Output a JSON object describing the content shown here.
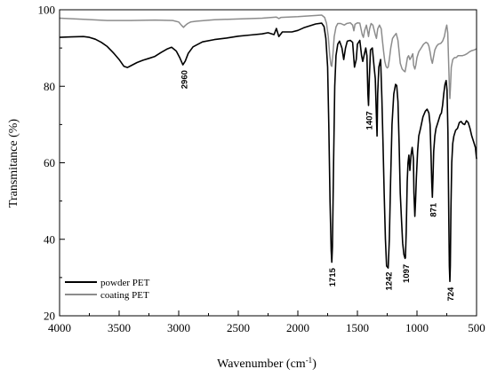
{
  "chart_data": {
    "type": "line",
    "xlabel": "Wavenumber (cm",
    "xlabel_superscript": "-1",
    "xlabel_suffix": ")",
    "ylabel": "Transmitance (%)",
    "xlim": [
      4000,
      500
    ],
    "ylim": [
      20,
      100
    ],
    "x_reversed": true,
    "x_ticks": [
      4000,
      3500,
      3000,
      2500,
      2000,
      1500,
      1000,
      500
    ],
    "x_tick_labels": [
      "4000",
      "3500",
      "3000",
      "2500",
      "2000",
      "1500",
      "1000",
      "500"
    ],
    "y_ticks": [
      20,
      40,
      60,
      80,
      100
    ],
    "y_tick_labels": [
      "20",
      "40",
      "60",
      "80",
      "100"
    ],
    "grid": false,
    "legend_position": "bottom-left",
    "series": [
      {
        "name": "powder PET",
        "color": "#000000",
        "points": [
          [
            4000,
            92.8
          ],
          [
            3900,
            92.9
          ],
          [
            3800,
            93.0
          ],
          [
            3750,
            92.8
          ],
          [
            3700,
            92.3
          ],
          [
            3650,
            91.5
          ],
          [
            3600,
            90.4
          ],
          [
            3550,
            88.8
          ],
          [
            3500,
            87.0
          ],
          [
            3460,
            85.2
          ],
          [
            3430,
            84.9
          ],
          [
            3400,
            85.4
          ],
          [
            3350,
            86.2
          ],
          [
            3300,
            86.8
          ],
          [
            3250,
            87.3
          ],
          [
            3200,
            87.8
          ],
          [
            3150,
            88.8
          ],
          [
            3100,
            89.7
          ],
          [
            3060,
            90.2
          ],
          [
            3020,
            89.2
          ],
          [
            2990,
            87.4
          ],
          [
            2965,
            85.6
          ],
          [
            2945,
            86.6
          ],
          [
            2920,
            88.6
          ],
          [
            2880,
            90.3
          ],
          [
            2850,
            90.8
          ],
          [
            2800,
            91.6
          ],
          [
            2700,
            92.2
          ],
          [
            2600,
            92.6
          ],
          [
            2500,
            93.1
          ],
          [
            2400,
            93.4
          ],
          [
            2300,
            93.7
          ],
          [
            2250,
            94.0
          ],
          [
            2200,
            93.5
          ],
          [
            2180,
            95.1
          ],
          [
            2160,
            93.0
          ],
          [
            2130,
            94.2
          ],
          [
            2050,
            94.2
          ],
          [
            2000,
            94.6
          ],
          [
            1950,
            95.3
          ],
          [
            1900,
            95.8
          ],
          [
            1850,
            96.3
          ],
          [
            1800,
            96.5
          ],
          [
            1780,
            95.6
          ],
          [
            1765,
            92.5
          ],
          [
            1750,
            85.0
          ],
          [
            1740,
            70.0
          ],
          [
            1730,
            50.0
          ],
          [
            1720,
            37.0
          ],
          [
            1715,
            34.0
          ],
          [
            1710,
            38.0
          ],
          [
            1700,
            60.0
          ],
          [
            1690,
            80.0
          ],
          [
            1680,
            88.0
          ],
          [
            1665,
            91.0
          ],
          [
            1650,
            91.8
          ],
          [
            1630,
            90.0
          ],
          [
            1615,
            87.0
          ],
          [
            1600,
            90.0
          ],
          [
            1585,
            91.8
          ],
          [
            1560,
            92.0
          ],
          [
            1540,
            91.5
          ],
          [
            1525,
            85.0
          ],
          [
            1510,
            87.0
          ],
          [
            1500,
            91.0
          ],
          [
            1480,
            92.0
          ],
          [
            1465,
            88.0
          ],
          [
            1455,
            86.5
          ],
          [
            1445,
            88.0
          ],
          [
            1430,
            90.0
          ],
          [
            1420,
            88.0
          ],
          [
            1412,
            78.0
          ],
          [
            1407,
            75.0
          ],
          [
            1400,
            82.0
          ],
          [
            1390,
            89.5
          ],
          [
            1375,
            90.0
          ],
          [
            1360,
            85.0
          ],
          [
            1350,
            82.0
          ],
          [
            1340,
            72.0
          ],
          [
            1335,
            67.0
          ],
          [
            1330,
            78.0
          ],
          [
            1320,
            85.0
          ],
          [
            1305,
            87.0
          ],
          [
            1295,
            77.0
          ],
          [
            1285,
            65.0
          ],
          [
            1275,
            52.0
          ],
          [
            1265,
            40.0
          ],
          [
            1255,
            33.0
          ],
          [
            1242,
            32.5
          ],
          [
            1232,
            40.0
          ],
          [
            1222,
            55.0
          ],
          [
            1210,
            70.0
          ],
          [
            1195,
            78.0
          ],
          [
            1180,
            80.5
          ],
          [
            1170,
            80.2
          ],
          [
            1160,
            76.0
          ],
          [
            1150,
            65.0
          ],
          [
            1140,
            52.0
          ],
          [
            1130,
            45.0
          ],
          [
            1120,
            39.0
          ],
          [
            1110,
            36.0
          ],
          [
            1100,
            35.0
          ],
          [
            1097,
            35.2
          ],
          [
            1090,
            42.0
          ],
          [
            1082,
            55.0
          ],
          [
            1075,
            60.0
          ],
          [
            1068,
            62.0
          ],
          [
            1060,
            58.0
          ],
          [
            1050,
            62.0
          ],
          [
            1040,
            64.0
          ],
          [
            1030,
            61.0
          ],
          [
            1025,
            52.0
          ],
          [
            1018,
            46.0
          ],
          [
            1012,
            50.0
          ],
          [
            1005,
            56.0
          ],
          [
            995,
            63.0
          ],
          [
            985,
            67.0
          ],
          [
            970,
            69.0
          ],
          [
            950,
            72.0
          ],
          [
            930,
            73.5
          ],
          [
            915,
            74.0
          ],
          [
            900,
            73.0
          ],
          [
            890,
            70.0
          ],
          [
            882,
            62.0
          ],
          [
            876,
            55.0
          ],
          [
            871,
            51.0
          ],
          [
            866,
            56.0
          ],
          [
            860,
            63.0
          ],
          [
            850,
            67.0
          ],
          [
            840,
            69.0
          ],
          [
            830,
            70.0
          ],
          [
            820,
            71.0
          ],
          [
            805,
            72.5
          ],
          [
            795,
            73.0
          ],
          [
            785,
            75.0
          ],
          [
            775,
            78.0
          ],
          [
            765,
            80.5
          ],
          [
            755,
            81.5
          ],
          [
            748,
            79.0
          ],
          [
            740,
            68.0
          ],
          [
            733,
            45.0
          ],
          [
            728,
            33.0
          ],
          [
            724,
            29.0
          ],
          [
            720,
            33.0
          ],
          [
            715,
            48.0
          ],
          [
            708,
            60.0
          ],
          [
            700,
            65.0
          ],
          [
            690,
            67.0
          ],
          [
            675,
            68.5
          ],
          [
            660,
            69.0
          ],
          [
            645,
            70.5
          ],
          [
            630,
            70.8
          ],
          [
            615,
            70.2
          ],
          [
            600,
            70.0
          ],
          [
            585,
            71.0
          ],
          [
            570,
            70.5
          ],
          [
            555,
            69.0
          ],
          [
            540,
            67.0
          ],
          [
            525,
            65.5
          ],
          [
            510,
            64.0
          ],
          [
            500,
            61.0
          ]
        ]
      },
      {
        "name": "coating PET",
        "color": "#8c8c8c",
        "points": [
          [
            4000,
            97.8
          ],
          [
            3800,
            97.5
          ],
          [
            3600,
            97.2
          ],
          [
            3400,
            97.2
          ],
          [
            3200,
            97.3
          ],
          [
            3050,
            97.2
          ],
          [
            3000,
            96.8
          ],
          [
            2975,
            95.9
          ],
          [
            2960,
            95.4
          ],
          [
            2945,
            95.9
          ],
          [
            2925,
            96.4
          ],
          [
            2900,
            96.8
          ],
          [
            2850,
            97.0
          ],
          [
            2700,
            97.4
          ],
          [
            2500,
            97.6
          ],
          [
            2300,
            97.8
          ],
          [
            2180,
            98.1
          ],
          [
            2160,
            97.7
          ],
          [
            2140,
            98.0
          ],
          [
            2000,
            98.2
          ],
          [
            1900,
            98.4
          ],
          [
            1800,
            98.6
          ],
          [
            1775,
            98.0
          ],
          [
            1760,
            96.5
          ],
          [
            1745,
            93.0
          ],
          [
            1732,
            88.0
          ],
          [
            1722,
            85.5
          ],
          [
            1715,
            85.2
          ],
          [
            1705,
            88.5
          ],
          [
            1695,
            93.0
          ],
          [
            1680,
            95.5
          ],
          [
            1665,
            96.4
          ],
          [
            1640,
            96.4
          ],
          [
            1610,
            96.0
          ],
          [
            1590,
            96.4
          ],
          [
            1560,
            96.6
          ],
          [
            1540,
            96.0
          ],
          [
            1530,
            94.5
          ],
          [
            1520,
            96.2
          ],
          [
            1500,
            96.6
          ],
          [
            1480,
            96.5
          ],
          [
            1460,
            93.5
          ],
          [
            1450,
            92.8
          ],
          [
            1440,
            94.5
          ],
          [
            1425,
            96.0
          ],
          [
            1412,
            94.0
          ],
          [
            1407,
            93.0
          ],
          [
            1398,
            95.0
          ],
          [
            1385,
            96.4
          ],
          [
            1370,
            96.0
          ],
          [
            1350,
            93.5
          ],
          [
            1340,
            92.5
          ],
          [
            1330,
            95.0
          ],
          [
            1315,
            96.0
          ],
          [
            1300,
            95.0
          ],
          [
            1290,
            92.0
          ],
          [
            1280,
            89.0
          ],
          [
            1270,
            86.5
          ],
          [
            1260,
            85.2
          ],
          [
            1250,
            84.8
          ],
          [
            1242,
            85.0
          ],
          [
            1232,
            87.0
          ],
          [
            1220,
            90.0
          ],
          [
            1205,
            92.5
          ],
          [
            1190,
            93.2
          ],
          [
            1175,
            93.8
          ],
          [
            1160,
            92.0
          ],
          [
            1150,
            89.0
          ],
          [
            1140,
            86.0
          ],
          [
            1125,
            84.5
          ],
          [
            1110,
            84.0
          ],
          [
            1100,
            83.8
          ],
          [
            1090,
            85.5
          ],
          [
            1080,
            87.5
          ],
          [
            1070,
            88.0
          ],
          [
            1060,
            87.0
          ],
          [
            1050,
            87.5
          ],
          [
            1035,
            88.5
          ],
          [
            1028,
            85.5
          ],
          [
            1018,
            84.5
          ],
          [
            1010,
            85.5
          ],
          [
            1000,
            87.5
          ],
          [
            985,
            89.0
          ],
          [
            965,
            90.0
          ],
          [
            945,
            91.0
          ],
          [
            925,
            91.5
          ],
          [
            910,
            91.2
          ],
          [
            900,
            90.5
          ],
          [
            890,
            89.0
          ],
          [
            880,
            87.0
          ],
          [
            871,
            86.0
          ],
          [
            862,
            87.5
          ],
          [
            850,
            89.5
          ],
          [
            835,
            90.5
          ],
          [
            820,
            91.0
          ],
          [
            800,
            91.2
          ],
          [
            785,
            91.8
          ],
          [
            770,
            93.0
          ],
          [
            758,
            95.0
          ],
          [
            750,
            96.0
          ],
          [
            742,
            94.0
          ],
          [
            735,
            87.0
          ],
          [
            728,
            80.0
          ],
          [
            724,
            76.8
          ],
          [
            719,
            80.0
          ],
          [
            712,
            85.0
          ],
          [
            700,
            87.0
          ],
          [
            685,
            87.5
          ],
          [
            670,
            87.5
          ],
          [
            655,
            88.0
          ],
          [
            640,
            88.0
          ],
          [
            620,
            88.0
          ],
          [
            600,
            88.2
          ],
          [
            580,
            88.5
          ],
          [
            560,
            89.0
          ],
          [
            540,
            89.3
          ],
          [
            520,
            89.5
          ],
          [
            500,
            89.8
          ]
        ]
      }
    ],
    "annotations": [
      {
        "text": "2960",
        "x": 2960,
        "y": 84.2,
        "rotation": 90
      },
      {
        "text": "1715",
        "x": 1715,
        "y": 32.5,
        "rotation": 90
      },
      {
        "text": "1407",
        "x": 1407,
        "y": 73.5,
        "rotation": 90
      },
      {
        "text": "1242",
        "x": 1242,
        "y": 31.5,
        "rotation": 90
      },
      {
        "text": "1097",
        "x": 1097,
        "y": 33.5,
        "rotation": 90
      },
      {
        "text": "871",
        "x": 871,
        "y": 49.5,
        "rotation": 90
      },
      {
        "text": "724",
        "x": 724,
        "y": 27.5,
        "rotation": 90
      }
    ]
  }
}
